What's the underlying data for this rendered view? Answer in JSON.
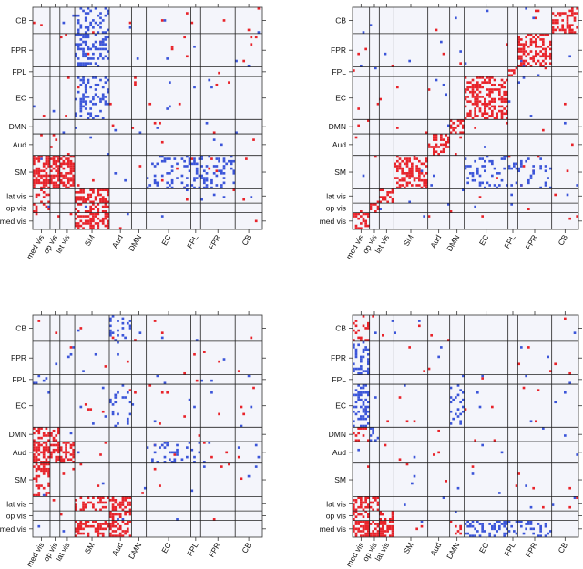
{
  "colors": {
    "positive": "#e8232a",
    "negative": "#3b55d9",
    "background": "#f4f5fb",
    "network_line": "#222222"
  },
  "chart_data": [
    {
      "type": "heatmap",
      "panel": "top-left",
      "y_network_order_top_to_bottom": [
        "CB",
        "FPR",
        "FPL",
        "EC",
        "DMN",
        "Aud",
        "SM",
        "lat vis",
        "op vis",
        "med vis"
      ],
      "x_network_order_left_to_right": [
        "med vis",
        "op vis",
        "lat vis",
        "SM",
        "Aud",
        "DMN",
        "EC",
        "FPL",
        "FPR",
        "CB"
      ],
      "network_sizes": [
        7,
        4,
        6,
        14,
        9,
        6,
        18,
        4,
        14,
        11
      ],
      "highlighted_blocks": [
        {
          "row": "SM",
          "col": "med vis",
          "sign": "positive",
          "density": 0.6
        },
        {
          "row": "SM",
          "col": "op vis",
          "sign": "positive",
          "density": 0.6
        },
        {
          "row": "SM",
          "col": "lat vis",
          "sign": "positive",
          "density": 0.6
        },
        {
          "row": "lat vis",
          "col": "SM",
          "sign": "positive",
          "density": 0.6
        },
        {
          "row": "op vis",
          "col": "SM",
          "sign": "positive",
          "density": 0.55
        },
        {
          "row": "med vis",
          "col": "SM",
          "sign": "positive",
          "density": 0.6
        },
        {
          "row": "CB",
          "col": "SM",
          "sign": "negative",
          "density": 0.3
        },
        {
          "row": "FPR",
          "col": "SM",
          "sign": "negative",
          "density": 0.35
        },
        {
          "row": "EC",
          "col": "SM",
          "sign": "negative",
          "density": 0.3
        },
        {
          "row": "SM",
          "col": "EC",
          "sign": "negative",
          "density": 0.2
        },
        {
          "row": "SM",
          "col": "FPL",
          "sign": "negative",
          "density": 0.2
        },
        {
          "row": "SM",
          "col": "FPR",
          "sign": "negative",
          "density": 0.25
        },
        {
          "row": "lat vis",
          "col": "med vis",
          "sign": "positive",
          "density": 0.25
        },
        {
          "row": "op vis",
          "col": "med vis",
          "sign": "positive",
          "density": 0.3
        }
      ]
    },
    {
      "type": "heatmap",
      "panel": "top-right",
      "y_network_order_top_to_bottom": [
        "CB",
        "FPR",
        "FPL",
        "EC",
        "DMN",
        "Aud",
        "SM",
        "lat vis",
        "op vis",
        "med vis"
      ],
      "x_network_order_left_to_right": [
        "med vis",
        "op vis",
        "lat vis",
        "SM",
        "Aud",
        "DMN",
        "EC",
        "FPL",
        "FPR",
        "CB"
      ],
      "network_sizes": [
        7,
        4,
        6,
        14,
        9,
        6,
        18,
        4,
        14,
        11
      ],
      "diagonal_blocks": {
        "sign": "positive",
        "density": 0.45
      },
      "highlighted_blocks": [
        {
          "row": "SM",
          "col": "EC",
          "sign": "negative",
          "density": 0.15
        },
        {
          "row": "SM",
          "col": "FPL",
          "sign": "negative",
          "density": 0.12
        },
        {
          "row": "SM",
          "col": "FPR",
          "sign": "negative",
          "density": 0.12
        }
      ]
    },
    {
      "type": "heatmap",
      "panel": "bottom-left",
      "y_network_order_top_to_bottom": [
        "CB",
        "FPR",
        "FPL",
        "EC",
        "DMN",
        "Aud",
        "SM",
        "lat vis",
        "op vis",
        "med vis"
      ],
      "x_network_order_left_to_right": [
        "med vis",
        "op vis",
        "lat vis",
        "SM",
        "Aud",
        "DMN",
        "EC",
        "FPL",
        "FPR",
        "CB"
      ],
      "network_sizes": [
        7,
        4,
        6,
        14,
        9,
        6,
        18,
        4,
        14,
        11
      ],
      "highlighted_blocks": [
        {
          "row": "Aud",
          "col": "med vis",
          "sign": "positive",
          "density": 0.6
        },
        {
          "row": "Aud",
          "col": "op vis",
          "sign": "positive",
          "density": 0.6
        },
        {
          "row": "Aud",
          "col": "lat vis",
          "sign": "positive",
          "density": 0.5
        },
        {
          "row": "DMN",
          "col": "med vis",
          "sign": "positive",
          "density": 0.4
        },
        {
          "row": "DMN",
          "col": "op vis",
          "sign": "positive",
          "density": 0.35
        },
        {
          "row": "SM",
          "col": "med vis",
          "sign": "positive",
          "density": 0.35
        },
        {
          "row": "lat vis",
          "col": "Aud",
          "sign": "positive",
          "density": 0.5
        },
        {
          "row": "op vis",
          "col": "Aud",
          "sign": "positive",
          "density": 0.4
        },
        {
          "row": "med vis",
          "col": "Aud",
          "sign": "positive",
          "density": 0.55
        },
        {
          "row": "med vis",
          "col": "SM",
          "sign": "positive",
          "density": 0.5
        },
        {
          "row": "lat vis",
          "col": "SM",
          "sign": "positive",
          "density": 0.3
        },
        {
          "row": "CB",
          "col": "Aud",
          "sign": "negative",
          "density": 0.2
        },
        {
          "row": "EC",
          "col": "Aud",
          "sign": "negative",
          "density": 0.15
        },
        {
          "row": "Aud",
          "col": "EC",
          "sign": "negative",
          "density": 0.2
        },
        {
          "row": "Aud",
          "col": "FPL",
          "sign": "negative",
          "density": 0.1
        },
        {
          "row": "FPL",
          "col": "med vis",
          "sign": "negative",
          "density": 0.2
        }
      ]
    },
    {
      "type": "heatmap",
      "panel": "bottom-right",
      "y_network_order_top_to_bottom": [
        "CB",
        "FPR",
        "FPL",
        "EC",
        "DMN",
        "Aud",
        "SM",
        "lat vis",
        "op vis",
        "med vis"
      ],
      "x_network_order_left_to_right": [
        "med vis",
        "op vis",
        "lat vis",
        "SM",
        "Aud",
        "DMN",
        "EC",
        "FPL",
        "FPR",
        "CB"
      ],
      "network_sizes": [
        7,
        4,
        6,
        14,
        9,
        6,
        18,
        4,
        14,
        11
      ],
      "highlighted_blocks": [
        {
          "row": "lat vis",
          "col": "med vis",
          "sign": "positive",
          "density": 0.6
        },
        {
          "row": "lat vis",
          "col": "op vis",
          "sign": "positive",
          "density": 0.55
        },
        {
          "row": "op vis",
          "col": "med vis",
          "sign": "positive",
          "density": 0.6
        },
        {
          "row": "med vis",
          "col": "med vis",
          "sign": "positive",
          "density": 0.65
        },
        {
          "row": "med vis",
          "col": "op vis",
          "sign": "positive",
          "density": 0.6
        },
        {
          "row": "med vis",
          "col": "lat vis",
          "sign": "positive",
          "density": 0.6
        },
        {
          "row": "op vis",
          "col": "lat vis",
          "sign": "positive",
          "density": 0.5
        },
        {
          "row": "DMN",
          "col": "med vis",
          "sign": "positive",
          "density": 0.3
        },
        {
          "row": "med vis",
          "col": "DMN",
          "sign": "positive",
          "density": 0.2
        },
        {
          "row": "CB",
          "col": "med vis",
          "sign": "positive",
          "density": 0.25
        },
        {
          "row": "FPR",
          "col": "med vis",
          "sign": "negative",
          "density": 0.3
        },
        {
          "row": "EC",
          "col": "med vis",
          "sign": "negative",
          "density": 0.4
        },
        {
          "row": "DMN",
          "col": "op vis",
          "sign": "negative",
          "density": 0.2
        },
        {
          "row": "med vis",
          "col": "EC",
          "sign": "negative",
          "density": 0.4
        },
        {
          "row": "med vis",
          "col": "FPL",
          "sign": "negative",
          "density": 0.2
        },
        {
          "row": "med vis",
          "col": "FPR",
          "sign": "negative",
          "density": 0.25
        },
        {
          "row": "EC",
          "col": "DMN",
          "sign": "negative",
          "density": 0.2
        }
      ]
    }
  ]
}
